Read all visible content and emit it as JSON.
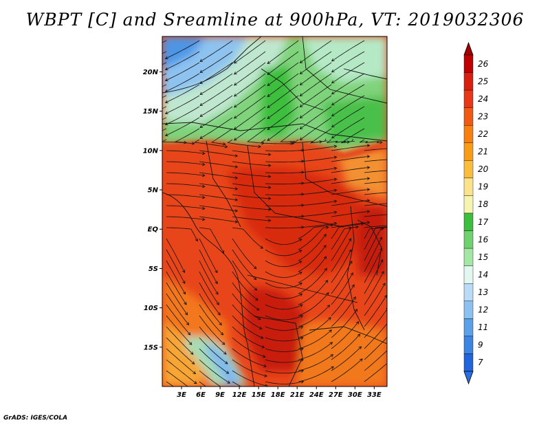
{
  "title": "WBPT [C] and Sreamline at 900hPa, VT: 2019032306",
  "credit": "GrADS: IGES/COLA",
  "map": {
    "lat_labels": [
      "20N",
      "15N",
      "10N",
      "5N",
      "EQ",
      "5S",
      "10S",
      "15S"
    ],
    "lon_labels": [
      "3E",
      "6E",
      "9E",
      "12E",
      "15E",
      "18E",
      "21E",
      "24E",
      "27E",
      "30E",
      "33E"
    ],
    "lon_range": [
      0,
      35
    ],
    "lat_range": [
      -20,
      24.5
    ]
  },
  "colorbar": {
    "levels": [
      "26",
      "25",
      "24",
      "23",
      "22",
      "21",
      "20",
      "19",
      "18",
      "17",
      "16",
      "15",
      "14",
      "13",
      "12",
      "11",
      "9",
      "7"
    ],
    "colors": [
      "#c00000",
      "#d92010",
      "#e83818",
      "#f05a14",
      "#f78010",
      "#f99d18",
      "#fcbc3c",
      "#fde28c",
      "#f5f5b0",
      "#3cbf3c",
      "#6fd26f",
      "#a4e6a4",
      "#e2f7ef",
      "#b9dbf7",
      "#8cc2f2",
      "#5aa1ea",
      "#3c85e2",
      "#2165dd"
    ],
    "top_arrow_color": "#a00000",
    "bottom_arrow_color": "#2a6ee0"
  }
}
